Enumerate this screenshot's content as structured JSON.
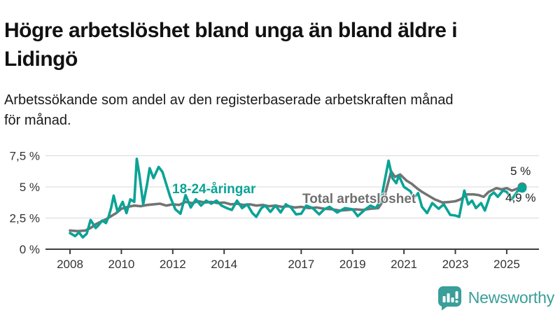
{
  "header": {
    "title": "Högre arbetslöshet bland unga än bland äldre i\nLidingö",
    "subtitle": "Arbetssökande som andel av den registerbaserade arbetskraften månad\nför månad."
  },
  "branding": {
    "name": "Newsworthy",
    "logo_icon": "speech-bubble-bar-chart-exclamation",
    "brand_color": "#3a9e99"
  },
  "colors": {
    "youth_line": "#0aa396",
    "total_line": "#737373",
    "gridline": "#d9d9d9",
    "axis": "#3d3d3d",
    "tick_text": "#333333"
  },
  "chart_data": {
    "type": "line",
    "title": "Högre arbetslöshet bland unga än bland äldre i Lidingö",
    "subtitle": "Arbetssökande som andel av den registerbaserade arbetskraften månad för månad.",
    "grid": true,
    "legend_position": "inline-labels",
    "x_axis": {
      "range": [
        2007.9,
        2026.2
      ],
      "ticks": [
        2008,
        2010,
        2012,
        2014,
        2017,
        2019,
        2021,
        2023,
        2025
      ],
      "tick_labels": [
        "2008",
        "2010",
        "2012",
        "2014",
        "2017",
        "2019",
        "2021",
        "2023",
        "2025"
      ]
    },
    "y_axis": {
      "range": [
        0,
        7.5
      ],
      "ticks": [
        0,
        2.5,
        5,
        7.5
      ],
      "tick_labels": [
        "0 %",
        "2,5 %",
        "5 %",
        "7,5 %"
      ],
      "unit": "%"
    },
    "series": [
      {
        "id": "total",
        "name": "Total arbetslöshet",
        "color": "#737373",
        "end_label": "5 %",
        "end_value": 5.0,
        "points": [
          [
            2008.0,
            1.5
          ],
          [
            2008.3,
            1.45
          ],
          [
            2008.6,
            1.5
          ],
          [
            2008.8,
            1.7
          ],
          [
            2009.0,
            2.0
          ],
          [
            2009.2,
            2.2
          ],
          [
            2009.4,
            2.4
          ],
          [
            2009.6,
            2.65
          ],
          [
            2009.8,
            2.9
          ],
          [
            2010.0,
            3.25
          ],
          [
            2010.25,
            3.4
          ],
          [
            2010.5,
            3.5
          ],
          [
            2010.75,
            3.45
          ],
          [
            2011.0,
            3.55
          ],
          [
            2011.25,
            3.6
          ],
          [
            2011.5,
            3.65
          ],
          [
            2011.75,
            3.5
          ],
          [
            2012.0,
            3.6
          ],
          [
            2012.25,
            3.55
          ],
          [
            2012.5,
            3.8
          ],
          [
            2012.75,
            3.7
          ],
          [
            2013.0,
            3.85
          ],
          [
            2013.25,
            3.75
          ],
          [
            2013.5,
            3.8
          ],
          [
            2013.75,
            3.7
          ],
          [
            2014.0,
            3.75
          ],
          [
            2014.25,
            3.6
          ],
          [
            2014.5,
            3.65
          ],
          [
            2014.75,
            3.55
          ],
          [
            2015.0,
            3.6
          ],
          [
            2015.25,
            3.5
          ],
          [
            2015.5,
            3.55
          ],
          [
            2015.75,
            3.45
          ],
          [
            2016.0,
            3.5
          ],
          [
            2016.25,
            3.4
          ],
          [
            2016.5,
            3.45
          ],
          [
            2016.75,
            3.35
          ],
          [
            2017.0,
            3.4
          ],
          [
            2017.3,
            3.3
          ],
          [
            2017.6,
            3.35
          ],
          [
            2017.9,
            3.25
          ],
          [
            2018.2,
            3.2
          ],
          [
            2018.5,
            3.1
          ],
          [
            2018.8,
            3.15
          ],
          [
            2019.1,
            3.2
          ],
          [
            2019.4,
            3.15
          ],
          [
            2019.7,
            3.25
          ],
          [
            2020.0,
            3.3
          ],
          [
            2020.2,
            3.9
          ],
          [
            2020.5,
            6.25
          ],
          [
            2020.65,
            5.8
          ],
          [
            2020.85,
            6.0
          ],
          [
            2021.1,
            5.5
          ],
          [
            2021.3,
            5.25
          ],
          [
            2021.5,
            4.9
          ],
          [
            2021.7,
            4.6
          ],
          [
            2021.95,
            4.3
          ],
          [
            2022.2,
            4.0
          ],
          [
            2022.5,
            3.75
          ],
          [
            2022.8,
            3.8
          ],
          [
            2023.0,
            3.85
          ],
          [
            2023.2,
            4.0
          ],
          [
            2023.45,
            4.4
          ],
          [
            2023.7,
            4.4
          ],
          [
            2023.9,
            4.35
          ],
          [
            2024.1,
            4.2
          ],
          [
            2024.3,
            4.6
          ],
          [
            2024.6,
            4.9
          ],
          [
            2024.8,
            4.8
          ],
          [
            2025.0,
            4.9
          ],
          [
            2025.2,
            4.7
          ],
          [
            2025.4,
            4.85
          ],
          [
            2025.6,
            5.0
          ]
        ]
      },
      {
        "id": "youth",
        "name": "18-24-åringar",
        "color": "#0aa396",
        "end_label": "4,9 %",
        "end_value": 4.9,
        "points": [
          [
            2008.0,
            1.3
          ],
          [
            2008.2,
            1.05
          ],
          [
            2008.35,
            1.35
          ],
          [
            2008.5,
            0.95
          ],
          [
            2008.65,
            1.25
          ],
          [
            2008.8,
            2.35
          ],
          [
            2009.0,
            1.7
          ],
          [
            2009.1,
            1.9
          ],
          [
            2009.25,
            2.3
          ],
          [
            2009.4,
            2.1
          ],
          [
            2009.5,
            2.6
          ],
          [
            2009.6,
            3.3
          ],
          [
            2009.7,
            4.3
          ],
          [
            2009.85,
            3.0
          ],
          [
            2010.05,
            3.8
          ],
          [
            2010.2,
            2.9
          ],
          [
            2010.35,
            4.0
          ],
          [
            2010.5,
            3.8
          ],
          [
            2010.6,
            7.25
          ],
          [
            2010.7,
            6.0
          ],
          [
            2010.85,
            3.6
          ],
          [
            2011.0,
            5.2
          ],
          [
            2011.1,
            6.5
          ],
          [
            2011.25,
            5.7
          ],
          [
            2011.45,
            6.6
          ],
          [
            2011.6,
            6.2
          ],
          [
            2011.75,
            5.2
          ],
          [
            2011.9,
            4.2
          ],
          [
            2012.1,
            3.2
          ],
          [
            2012.3,
            2.85
          ],
          [
            2012.5,
            4.35
          ],
          [
            2012.7,
            3.35
          ],
          [
            2012.9,
            4.0
          ],
          [
            2013.1,
            3.5
          ],
          [
            2013.3,
            3.9
          ],
          [
            2013.5,
            3.65
          ],
          [
            2013.7,
            3.9
          ],
          [
            2013.9,
            3.5
          ],
          [
            2014.1,
            3.3
          ],
          [
            2014.3,
            3.15
          ],
          [
            2014.5,
            3.9
          ],
          [
            2014.7,
            3.3
          ],
          [
            2014.9,
            3.6
          ],
          [
            2015.1,
            2.9
          ],
          [
            2015.25,
            2.6
          ],
          [
            2015.45,
            3.3
          ],
          [
            2015.6,
            3.5
          ],
          [
            2015.8,
            3.0
          ],
          [
            2016.0,
            3.5
          ],
          [
            2016.2,
            2.95
          ],
          [
            2016.4,
            3.6
          ],
          [
            2016.6,
            3.35
          ],
          [
            2016.8,
            2.8
          ],
          [
            2017.0,
            2.85
          ],
          [
            2017.2,
            3.5
          ],
          [
            2017.45,
            3.3
          ],
          [
            2017.7,
            2.8
          ],
          [
            2017.9,
            3.2
          ],
          [
            2018.1,
            3.4
          ],
          [
            2018.4,
            2.95
          ],
          [
            2018.7,
            3.3
          ],
          [
            2019.0,
            3.2
          ],
          [
            2019.2,
            2.65
          ],
          [
            2019.5,
            3.2
          ],
          [
            2019.7,
            3.5
          ],
          [
            2019.9,
            3.3
          ],
          [
            2020.1,
            3.9
          ],
          [
            2020.4,
            7.1
          ],
          [
            2020.55,
            5.7
          ],
          [
            2020.7,
            5.3
          ],
          [
            2020.8,
            5.9
          ],
          [
            2021.0,
            5.0
          ],
          [
            2021.25,
            4.65
          ],
          [
            2021.4,
            4.1
          ],
          [
            2021.55,
            4.5
          ],
          [
            2021.7,
            3.4
          ],
          [
            2021.9,
            2.9
          ],
          [
            2022.1,
            3.7
          ],
          [
            2022.35,
            3.25
          ],
          [
            2022.55,
            3.6
          ],
          [
            2022.8,
            2.75
          ],
          [
            2023.0,
            2.7
          ],
          [
            2023.15,
            2.6
          ],
          [
            2023.35,
            4.7
          ],
          [
            2023.5,
            3.6
          ],
          [
            2023.65,
            3.9
          ],
          [
            2023.8,
            3.3
          ],
          [
            2024.0,
            3.7
          ],
          [
            2024.15,
            3.1
          ],
          [
            2024.35,
            4.3
          ],
          [
            2024.5,
            4.55
          ],
          [
            2024.65,
            4.2
          ],
          [
            2024.85,
            4.7
          ],
          [
            2025.0,
            4.6
          ],
          [
            2025.2,
            4.0
          ],
          [
            2025.4,
            4.6
          ],
          [
            2025.6,
            4.9
          ]
        ]
      }
    ]
  }
}
